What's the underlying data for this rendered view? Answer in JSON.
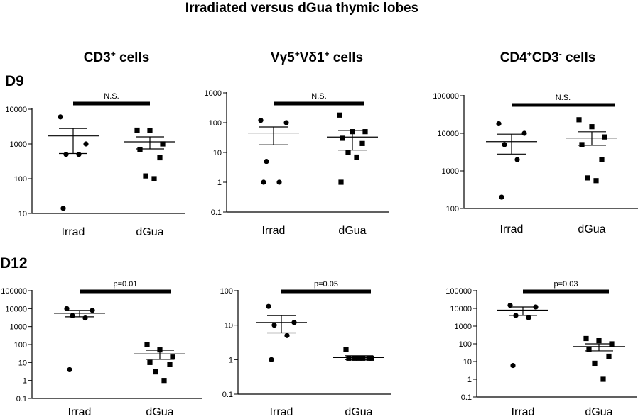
{
  "title": "Irradiated versus dGua thymic lobes",
  "columns": [
    {
      "pre": "CD3",
      "sup1": "+",
      "mid": "",
      "sup2": "",
      "post": " cells"
    },
    {
      "pre": "Vγ5",
      "sup1": "+",
      "mid": "Vδ1",
      "sup2": "+",
      "post": " cells"
    },
    {
      "pre": "CD4",
      "sup1": "+",
      "mid": "CD3",
      "sup2": "-",
      "post": " cells"
    }
  ],
  "rows": [
    "D9",
    "D12"
  ],
  "chart_data": [
    {
      "type": "scatter",
      "row": "D9",
      "column": "CD3+ cells",
      "scale": "log",
      "ylim": [
        10,
        10000
      ],
      "ticks": [
        "10",
        "100",
        "1000",
        "10000"
      ],
      "categories": [
        "Irrad",
        "dGua"
      ],
      "significance": "N.S.",
      "groups": [
        {
          "name": "Irrad",
          "marker": "circle",
          "values": [
            6000,
            1000,
            500,
            500,
            14
          ],
          "mean": 1700,
          "sem_low": 530,
          "sem_high": 2800
        },
        {
          "name": "dGua",
          "marker": "square",
          "values": [
            2500,
            2400,
            1000,
            700,
            400,
            120,
            100
          ],
          "mean": 1150,
          "sem_low": 720,
          "sem_high": 1600
        }
      ]
    },
    {
      "type": "scatter",
      "row": "D9",
      "column": "Vγ5+Vδ1+ cells",
      "scale": "log",
      "ylim": [
        0.1,
        1000
      ],
      "ticks": [
        "0.1",
        "1",
        "10",
        "100",
        "1000"
      ],
      "categories": [
        "Irrad",
        "dGua"
      ],
      "significance": "N.S.",
      "groups": [
        {
          "name": "Irrad",
          "marker": "circle",
          "values": [
            120,
            100,
            5,
            1,
            1
          ],
          "mean": 45,
          "sem_low": 18,
          "sem_high": 72
        },
        {
          "name": "dGua",
          "marker": "square",
          "values": [
            180,
            50,
            50,
            30,
            20,
            10,
            7,
            1
          ],
          "mean": 33,
          "sem_low": 12,
          "sem_high": 55
        }
      ]
    },
    {
      "type": "scatter",
      "row": "D9",
      "column": "CD4+CD3- cells",
      "scale": "log",
      "ylim": [
        100,
        100000
      ],
      "ticks": [
        "100",
        "1000",
        "10000",
        "100000"
      ],
      "categories": [
        "Irrad",
        "dGua"
      ],
      "significance": "N.S.",
      "groups": [
        {
          "name": "Irrad",
          "marker": "circle",
          "values": [
            18000,
            10000,
            5000,
            2000,
            200
          ],
          "mean": 6000,
          "sem_low": 2800,
          "sem_high": 9500
        },
        {
          "name": "dGua",
          "marker": "square",
          "values": [
            23000,
            15000,
            8000,
            5000,
            2000,
            650,
            550
          ],
          "mean": 7500,
          "sem_low": 4800,
          "sem_high": 11000
        }
      ]
    },
    {
      "type": "scatter",
      "row": "D12",
      "column": "CD3+ cells",
      "scale": "log",
      "ylim": [
        0.1,
        100000
      ],
      "ticks": [
        "0.1",
        "1",
        "10",
        "100",
        "1000",
        "10000",
        "100000"
      ],
      "categories": [
        "Irrad",
        "dGua"
      ],
      "significance": "p=0.01",
      "groups": [
        {
          "name": "Irrad",
          "marker": "circle",
          "values": [
            10000,
            8000,
            4000,
            3000,
            4
          ],
          "mean": 5500,
          "sem_low": 3500,
          "sem_high": 8000
        },
        {
          "name": "dGua",
          "marker": "square",
          "values": [
            100,
            50,
            20,
            10,
            8,
            3,
            1
          ],
          "mean": 30,
          "sem_low": 15,
          "sem_high": 48
        }
      ]
    },
    {
      "type": "scatter",
      "row": "D12",
      "column": "Vγ5+Vδ1+ cells",
      "scale": "log",
      "ylim": [
        0.1,
        100
      ],
      "ticks": [
        "0.1",
        "1",
        "10",
        "100"
      ],
      "categories": [
        "Irrad",
        "dGua"
      ],
      "significance": "p=0.05",
      "groups": [
        {
          "name": "Irrad",
          "marker": "circle",
          "values": [
            35,
            12,
            10,
            5,
            1
          ],
          "mean": 12,
          "sem_low": 6,
          "sem_high": 19
        },
        {
          "name": "dGua",
          "marker": "square",
          "values": [
            2,
            1.1,
            1.1,
            1.1,
            1.1,
            1.1,
            1.1
          ],
          "mean": 1.15,
          "sem_low": 1.0,
          "sem_high": 1.3
        }
      ]
    },
    {
      "type": "scatter",
      "row": "D12",
      "column": "CD4+CD3- cells",
      "scale": "log",
      "ylim": [
        0.1,
        100000
      ],
      "ticks": [
        "0.1",
        "1",
        "10",
        "100",
        "1000",
        "10000",
        "100000"
      ],
      "categories": [
        "Irrad",
        "dGua"
      ],
      "significance": "p=0.03",
      "groups": [
        {
          "name": "Irrad",
          "marker": "circle",
          "values": [
            15000,
            12000,
            4000,
            3000,
            6
          ],
          "mean": 8000,
          "sem_low": 4000,
          "sem_high": 12000
        },
        {
          "name": "dGua",
          "marker": "square",
          "values": [
            200,
            150,
            100,
            50,
            20,
            8,
            1
          ],
          "mean": 70,
          "sem_low": 40,
          "sem_high": 100
        }
      ]
    }
  ]
}
